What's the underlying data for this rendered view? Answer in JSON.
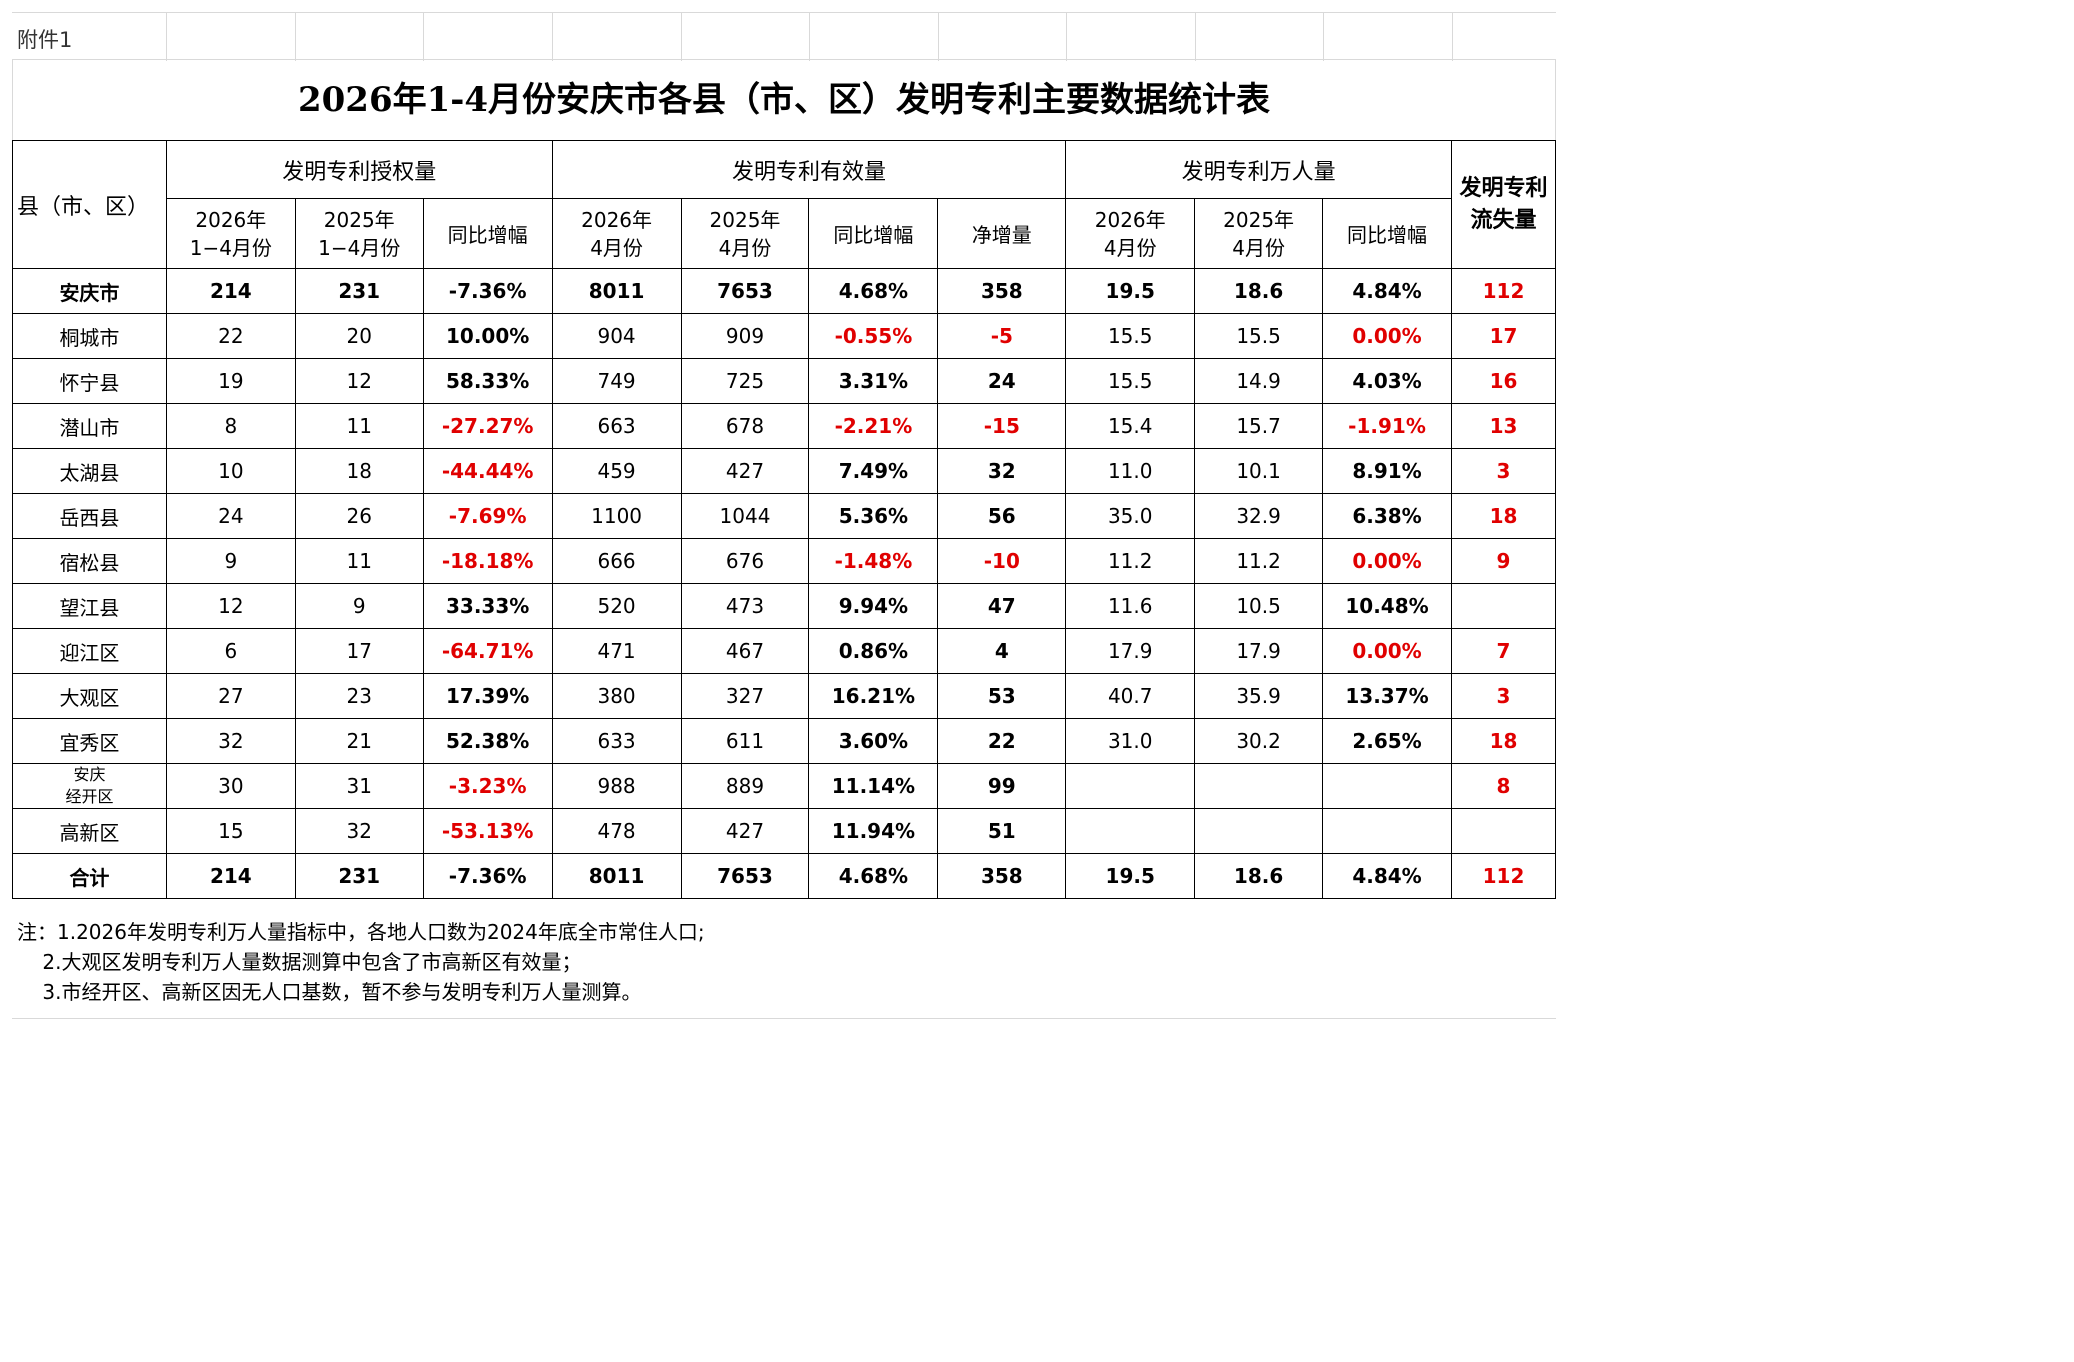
{
  "attachment_label": "附件1",
  "title": "2026年1-4月份安庆市各县（市、区）发明专利主要数据统计表",
  "header": {
    "region": "县（市、区）",
    "group_grant": "发明专利授权量",
    "group_valid": "发明专利有效量",
    "group_per10k": "发明专利万人量",
    "loss_line1": "发明专利",
    "loss_line2": "流失量",
    "grant_2026_l1": "2026年",
    "grant_2026_l2": "1−4月份",
    "grant_2025_l1": "2025年",
    "grant_2025_l2": "1−4月份",
    "grant_yoy": "同比增幅",
    "valid_2026_l1": "2026年",
    "valid_2026_l2": "4月份",
    "valid_2025_l1": "2025年",
    "valid_2025_l2": "4月份",
    "valid_yoy": "同比增幅",
    "valid_net": "净增量",
    "per_2026_l1": "2026年",
    "per_2026_l2": "4月份",
    "per_2025_l1": "2025年",
    "per_2025_l2": "4月份",
    "per_yoy": "同比增幅"
  },
  "rows": [
    {
      "name": "安庆市",
      "g26": "214",
      "g25": "231",
      "gy": "-7.36%",
      "v26": "8011",
      "v25": "7653",
      "vy": "4.68%",
      "vn": "358",
      "p26": "19.5",
      "p25": "18.6",
      "py": "4.84%",
      "loss": "112"
    },
    {
      "name": "桐城市",
      "g26": "22",
      "g25": "20",
      "gy": "10.00%",
      "v26": "904",
      "v25": "909",
      "vy": "-0.55%",
      "vn": "-5",
      "p26": "15.5",
      "p25": "15.5",
      "py": "0.00%",
      "loss": "17"
    },
    {
      "name": "怀宁县",
      "g26": "19",
      "g25": "12",
      "gy": "58.33%",
      "v26": "749",
      "v25": "725",
      "vy": "3.31%",
      "vn": "24",
      "p26": "15.5",
      "p25": "14.9",
      "py": "4.03%",
      "loss": "16"
    },
    {
      "name": "潜山市",
      "g26": "8",
      "g25": "11",
      "gy": "-27.27%",
      "v26": "663",
      "v25": "678",
      "vy": "-2.21%",
      "vn": "-15",
      "p26": "15.4",
      "p25": "15.7",
      "py": "-1.91%",
      "loss": "13"
    },
    {
      "name": "太湖县",
      "g26": "10",
      "g25": "18",
      "gy": "-44.44%",
      "v26": "459",
      "v25": "427",
      "vy": "7.49%",
      "vn": "32",
      "p26": "11.0",
      "p25": "10.1",
      "py": "8.91%",
      "loss": "3"
    },
    {
      "name": "岳西县",
      "g26": "24",
      "g25": "26",
      "gy": "-7.69%",
      "v26": "1100",
      "v25": "1044",
      "vy": "5.36%",
      "vn": "56",
      "p26": "35.0",
      "p25": "32.9",
      "py": "6.38%",
      "loss": "18"
    },
    {
      "name": "宿松县",
      "g26": "9",
      "g25": "11",
      "gy": "-18.18%",
      "v26": "666",
      "v25": "676",
      "vy": "-1.48%",
      "vn": "-10",
      "p26": "11.2",
      "p25": "11.2",
      "py": "0.00%",
      "loss": "9"
    },
    {
      "name": "望江县",
      "g26": "12",
      "g25": "9",
      "gy": "33.33%",
      "v26": "520",
      "v25": "473",
      "vy": "9.94%",
      "vn": "47",
      "p26": "11.6",
      "p25": "10.5",
      "py": "10.48%",
      "loss": ""
    },
    {
      "name": "迎江区",
      "g26": "6",
      "g25": "17",
      "gy": "-64.71%",
      "v26": "471",
      "v25": "467",
      "vy": "0.86%",
      "vn": "4",
      "p26": "17.9",
      "p25": "17.9",
      "py": "0.00%",
      "loss": "7"
    },
    {
      "name": "大观区",
      "g26": "27",
      "g25": "23",
      "gy": "17.39%",
      "v26": "380",
      "v25": "327",
      "vy": "16.21%",
      "vn": "53",
      "p26": "40.7",
      "p25": "35.9",
      "py": "13.37%",
      "loss": "3"
    },
    {
      "name": "宜秀区",
      "g26": "32",
      "g25": "21",
      "gy": "52.38%",
      "v26": "633",
      "v25": "611",
      "vy": "3.60%",
      "vn": "22",
      "p26": "31.0",
      "p25": "30.2",
      "py": "2.65%",
      "loss": "18"
    },
    {
      "name": "安庆\n经开区",
      "g26": "30",
      "g25": "31",
      "gy": "-3.23%",
      "v26": "988",
      "v25": "889",
      "vy": "11.14%",
      "vn": "99",
      "p26": "",
      "p25": "",
      "py": "",
      "loss": "8"
    },
    {
      "name": "高新区",
      "g26": "15",
      "g25": "32",
      "gy": "-53.13%",
      "v26": "478",
      "v25": "427",
      "vy": "11.94%",
      "vn": "51",
      "p26": "",
      "p25": "",
      "py": "",
      "loss": ""
    },
    {
      "name": "合计",
      "g26": "214",
      "g25": "231",
      "gy": "-7.36%",
      "v26": "8011",
      "v25": "7653",
      "vy": "4.68%",
      "vn": "358",
      "p26": "19.5",
      "p25": "18.6",
      "py": "4.84%",
      "loss": "112"
    }
  ],
  "notes": [
    "注：1.2026年发明专利万人量指标中，各地人口数为2024年底全市常住人口;",
    "    2.大观区发明专利万人量数据测算中包含了市高新区有效量；",
    "    3.市经开区、高新区因无人口基数，暂不参与发明专利万人量测算。"
  ],
  "colors": {
    "negative": "#e00000",
    "loss": "#e00000"
  }
}
